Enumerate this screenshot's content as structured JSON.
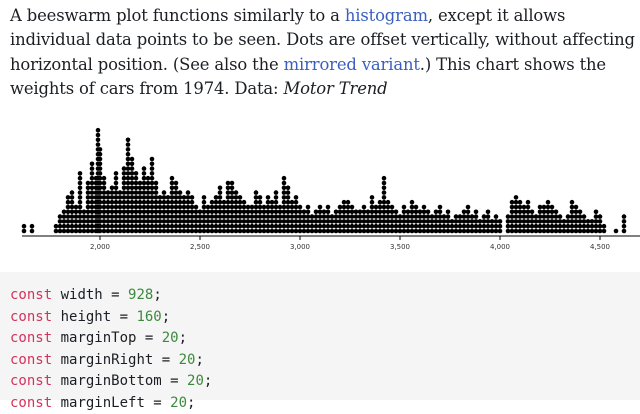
{
  "intro": {
    "text_1": "A beeswarm plot functions similarly to a ",
    "link_histogram": "histogram",
    "text_2": ", except it allows individual data points to be seen. Dots are offset vertically, without affecting horizontal position. (See also the ",
    "link_mirrored": "mirrored variant",
    "text_3": ".) This chart shows the weights of cars from 1974. Data: ",
    "source": "Motor Trend"
  },
  "chart_data": {
    "type": "scatter",
    "subtype": "beeswarm",
    "title": "",
    "xlabel": "",
    "ylabel": "",
    "x_ticks": [
      "2,000",
      "2,500",
      "3,000",
      "3,500",
      "4,000",
      "4,500"
    ],
    "x_tick_values": [
      2000,
      2500,
      3000,
      3500,
      4000,
      4500
    ],
    "xlim": [
      1600,
      4640
    ],
    "bin_width": 20,
    "columns": [
      [
        1620,
        2
      ],
      [
        1660,
        2
      ],
      [
        1780,
        2
      ],
      [
        1800,
        4
      ],
      [
        1820,
        5
      ],
      [
        1840,
        8
      ],
      [
        1860,
        9
      ],
      [
        1880,
        6
      ],
      [
        1900,
        13
      ],
      [
        1920,
        5
      ],
      [
        1940,
        11
      ],
      [
        1960,
        15
      ],
      [
        1980,
        12
      ],
      [
        1990,
        22
      ],
      [
        2000,
        18
      ],
      [
        2020,
        12
      ],
      [
        2040,
        9
      ],
      [
        2060,
        10
      ],
      [
        2080,
        13
      ],
      [
        2100,
        9
      ],
      [
        2120,
        14
      ],
      [
        2140,
        20
      ],
      [
        2160,
        16
      ],
      [
        2180,
        13
      ],
      [
        2200,
        11
      ],
      [
        2220,
        14
      ],
      [
        2240,
        12
      ],
      [
        2260,
        16
      ],
      [
        2280,
        11
      ],
      [
        2300,
        8
      ],
      [
        2320,
        9
      ],
      [
        2340,
        8
      ],
      [
        2360,
        12
      ],
      [
        2380,
        11
      ],
      [
        2400,
        9
      ],
      [
        2420,
        8
      ],
      [
        2440,
        9
      ],
      [
        2460,
        8
      ],
      [
        2480,
        6
      ],
      [
        2500,
        5
      ],
      [
        2520,
        8
      ],
      [
        2540,
        6
      ],
      [
        2560,
        7
      ],
      [
        2580,
        8
      ],
      [
        2600,
        10
      ],
      [
        2620,
        7
      ],
      [
        2640,
        11
      ],
      [
        2660,
        11
      ],
      [
        2680,
        9
      ],
      [
        2700,
        8
      ],
      [
        2720,
        7
      ],
      [
        2740,
        6
      ],
      [
        2760,
        6
      ],
      [
        2780,
        9
      ],
      [
        2800,
        8
      ],
      [
        2820,
        6
      ],
      [
        2840,
        8
      ],
      [
        2860,
        7
      ],
      [
        2880,
        9
      ],
      [
        2900,
        6
      ],
      [
        2920,
        12
      ],
      [
        2940,
        10
      ],
      [
        2960,
        7
      ],
      [
        2980,
        8
      ],
      [
        3000,
        6
      ],
      [
        3020,
        5
      ],
      [
        3040,
        6
      ],
      [
        3060,
        4
      ],
      [
        3080,
        5
      ],
      [
        3100,
        6
      ],
      [
        3120,
        5
      ],
      [
        3140,
        6
      ],
      [
        3160,
        4
      ],
      [
        3180,
        5
      ],
      [
        3200,
        6
      ],
      [
        3220,
        7
      ],
      [
        3240,
        7
      ],
      [
        3260,
        6
      ],
      [
        3280,
        5
      ],
      [
        3300,
        5
      ],
      [
        3320,
        6
      ],
      [
        3340,
        5
      ],
      [
        3360,
        8
      ],
      [
        3380,
        6
      ],
      [
        3400,
        7
      ],
      [
        3420,
        12
      ],
      [
        3440,
        7
      ],
      [
        3460,
        6
      ],
      [
        3480,
        5
      ],
      [
        3500,
        4
      ],
      [
        3520,
        6
      ],
      [
        3540,
        5
      ],
      [
        3560,
        7
      ],
      [
        3580,
        6
      ],
      [
        3600,
        5
      ],
      [
        3620,
        6
      ],
      [
        3640,
        5
      ],
      [
        3660,
        4
      ],
      [
        3680,
        5
      ],
      [
        3700,
        6
      ],
      [
        3720,
        4
      ],
      [
        3740,
        5
      ],
      [
        3760,
        3
      ],
      [
        3780,
        4
      ],
      [
        3800,
        4
      ],
      [
        3820,
        5
      ],
      [
        3840,
        6
      ],
      [
        3860,
        4
      ],
      [
        3880,
        5
      ],
      [
        3900,
        3
      ],
      [
        3920,
        4
      ],
      [
        3940,
        5
      ],
      [
        3960,
        3
      ],
      [
        3980,
        4
      ],
      [
        4000,
        3
      ],
      [
        4040,
        4
      ],
      [
        4060,
        7
      ],
      [
        4080,
        8
      ],
      [
        4100,
        7
      ],
      [
        4120,
        6
      ],
      [
        4140,
        7
      ],
      [
        4160,
        5
      ],
      [
        4180,
        4
      ],
      [
        4200,
        6
      ],
      [
        4220,
        6
      ],
      [
        4240,
        7
      ],
      [
        4260,
        6
      ],
      [
        4280,
        5
      ],
      [
        4300,
        4
      ],
      [
        4320,
        3
      ],
      [
        4340,
        4
      ],
      [
        4360,
        7
      ],
      [
        4380,
        6
      ],
      [
        4400,
        5
      ],
      [
        4420,
        4
      ],
      [
        4440,
        3
      ],
      [
        4460,
        3
      ],
      [
        4480,
        5
      ],
      [
        4500,
        4
      ],
      [
        4520,
        2
      ],
      [
        4580,
        1
      ],
      [
        4620,
        4
      ]
    ]
  },
  "code": {
    "lines": [
      {
        "kw": "const",
        "name": " width = ",
        "num": "928",
        "end": ";"
      },
      {
        "kw": "const",
        "name": " height = ",
        "num": "160",
        "end": ";"
      },
      {
        "kw": "const",
        "name": " marginTop = ",
        "num": "20",
        "end": ";"
      },
      {
        "kw": "const",
        "name": " marginRight = ",
        "num": "20",
        "end": ";"
      },
      {
        "kw": "const",
        "name": " marginBottom = ",
        "num": "20",
        "end": ";"
      },
      {
        "kw": "const",
        "name": " marginLeft = ",
        "num": "20",
        "end": ";"
      }
    ]
  },
  "colors": {
    "link": "#3b5fc0",
    "keyword": "#d2335c",
    "number": "#3b8a3e",
    "code_background": "#f5f5f5",
    "dot": "#000000"
  }
}
